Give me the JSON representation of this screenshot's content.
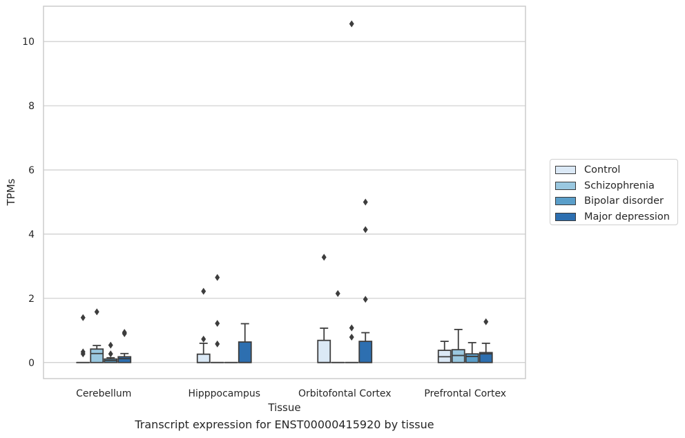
{
  "caption": "Transcript expression for ENST00000415920 by tissue",
  "chart_data": {
    "type": "box",
    "xlabel": "Tissue",
    "ylabel": "TPMs",
    "ylim": [
      -0.5,
      11.1
    ],
    "yticks": [
      0,
      2,
      4,
      6,
      8,
      10
    ],
    "grid": "horizontal",
    "legend_position": "right",
    "categories": [
      "Cerebellum",
      "Hipppocampus",
      "Orbitofontal Cortex",
      "Prefrontal Cortex"
    ],
    "series": [
      {
        "name": "Control",
        "color": "#dbe9f6",
        "boxes": [
          {
            "q1": 0,
            "median": 0,
            "q3": 0,
            "whisker_low": 0,
            "whisker_high": 0,
            "outliers": [
              1.4,
              0.33,
              0.27
            ]
          },
          {
            "q1": 0,
            "median": 0,
            "q3": 0.26,
            "whisker_low": 0,
            "whisker_high": 0.6,
            "outliers": [
              2.22,
              0.73
            ]
          },
          {
            "q1": 0,
            "median": 0,
            "q3": 0.69,
            "whisker_low": 0,
            "whisker_high": 1.07,
            "outliers": [
              3.28
            ]
          },
          {
            "q1": 0,
            "median": 0.18,
            "q3": 0.38,
            "whisker_low": 0,
            "whisker_high": 0.66,
            "outliers": []
          }
        ]
      },
      {
        "name": "Schizophrenia",
        "color": "#9ac8e0",
        "boxes": [
          {
            "q1": 0,
            "median": 0.28,
            "q3": 0.42,
            "whisker_low": 0,
            "whisker_high": 0.53,
            "outliers": [
              1.58
            ]
          },
          {
            "q1": 0,
            "median": 0,
            "q3": 0,
            "whisker_low": 0,
            "whisker_high": 0,
            "outliers": [
              2.65,
              1.22,
              0.58
            ]
          },
          {
            "q1": 0,
            "median": 0,
            "q3": 0,
            "whisker_low": 0,
            "whisker_high": 0,
            "outliers": [
              2.15
            ]
          },
          {
            "q1": 0,
            "median": 0.22,
            "q3": 0.4,
            "whisker_low": 0,
            "whisker_high": 1.03,
            "outliers": []
          }
        ]
      },
      {
        "name": "Bipolar disorder",
        "color": "#5a9ec9",
        "boxes": [
          {
            "q1": 0,
            "median": 0.06,
            "q3": 0.11,
            "whisker_low": 0,
            "whisker_high": 0.15,
            "outliers": [
              0.54,
              0.27
            ]
          },
          {
            "q1": 0,
            "median": 0,
            "q3": 0,
            "whisker_low": 0,
            "whisker_high": 0,
            "outliers": []
          },
          {
            "q1": 0,
            "median": 0,
            "q3": 0,
            "whisker_low": 0,
            "whisker_high": 0,
            "outliers": [
              10.55,
              1.08,
              0.79
            ]
          },
          {
            "q1": 0,
            "median": 0.19,
            "q3": 0.27,
            "whisker_low": 0,
            "whisker_high": 0.62,
            "outliers": []
          }
        ]
      },
      {
        "name": "Major depression",
        "color": "#2d6fb0",
        "boxes": [
          {
            "q1": 0,
            "median": 0.12,
            "q3": 0.18,
            "whisker_low": 0,
            "whisker_high": 0.28,
            "outliers": [
              0.94,
              0.9
            ]
          },
          {
            "q1": 0,
            "median": 0,
            "q3": 0.64,
            "whisker_low": 0,
            "whisker_high": 1.21,
            "outliers": []
          },
          {
            "q1": 0,
            "median": 0,
            "q3": 0.66,
            "whisker_low": 0,
            "whisker_high": 0.93,
            "outliers": [
              5.0,
              4.14,
              1.97
            ]
          },
          {
            "q1": 0,
            "median": 0.27,
            "q3": 0.31,
            "whisker_low": 0,
            "whisker_high": 0.6,
            "outliers": [
              1.27
            ]
          }
        ]
      }
    ]
  }
}
